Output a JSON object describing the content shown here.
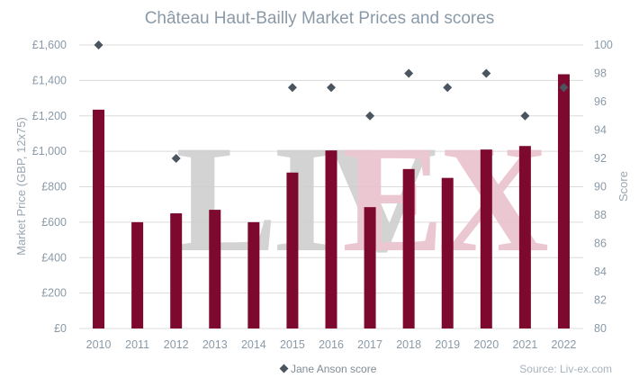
{
  "chart_data": {
    "type": "bar",
    "title": "Château Haut-Bailly Market Prices and scores",
    "categories": [
      "2010",
      "2011",
      "2012",
      "2013",
      "2014",
      "2015",
      "2016",
      "2017",
      "2018",
      "2019",
      "2020",
      "2021",
      "2022"
    ],
    "series": [
      {
        "axis": "left",
        "kind": "bar",
        "color": "#7d0a2e",
        "values": [
          1235,
          600,
          650,
          670,
          600,
          880,
          1005,
          685,
          900,
          850,
          1010,
          1030,
          1435
        ]
      },
      {
        "name": "Jane Anson score",
        "axis": "right",
        "kind": "marker",
        "marker": "diamond",
        "color": "#4a5560",
        "values": [
          100,
          null,
          92,
          null,
          null,
          97,
          97,
          95,
          98,
          97,
          98,
          95,
          97
        ]
      }
    ],
    "ylabel": "Market Price (GBP, 12x75)",
    "y2label": "Score",
    "ylim": [
      0,
      1600
    ],
    "y2lim": [
      80,
      100
    ],
    "yticks": [
      "£0",
      "£200",
      "£400",
      "£600",
      "£800",
      "£1,000",
      "£1,200",
      "£1,400",
      "£1,600"
    ],
    "y2ticks": [
      "80",
      "82",
      "84",
      "86",
      "88",
      "90",
      "92",
      "94",
      "96",
      "98",
      "100"
    ],
    "grid": true,
    "legend": {
      "placement": "bottom-center",
      "entries": [
        "Jane Anson score"
      ]
    }
  },
  "watermark": {
    "left": "LIV",
    "right": "EX",
    "left_color": "#cfcfcf",
    "right_color": "#e9c3cd"
  },
  "source": "Source: Liv-ex.com"
}
